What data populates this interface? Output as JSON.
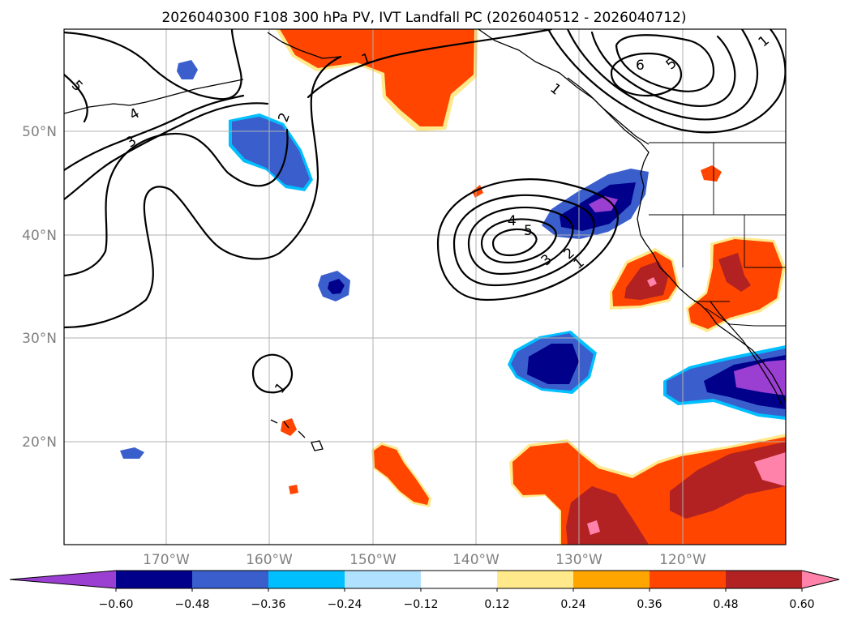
{
  "title": "2026040300 F108 300 hPa PV, IVT Landfall PC (2026040512 - 2026040712)",
  "lat_labels": [
    "50°N",
    "40°N",
    "30°N",
    "20°N"
  ],
  "lon_labels": [
    "170°W",
    "160°W",
    "150°W",
    "140°W",
    "130°W",
    "120°W"
  ],
  "colorbar": {
    "tick_labels": [
      "−0.60",
      "−0.48",
      "−0.36",
      "−0.24",
      "−0.12",
      "0.12",
      "0.24",
      "0.36",
      "0.48",
      "0.60"
    ],
    "colors": [
      "#9b3fd2",
      "#00008b",
      "#3a5fcd",
      "#00bfff",
      "#b0e2ff",
      "#ffffff",
      "#ffe98a",
      "#ffa500",
      "#ff4500",
      "#b22222",
      "#ff82ab"
    ]
  },
  "contour_labels": [
    "5",
    "4",
    "3",
    "2",
    "1",
    "1",
    "6",
    "5",
    "4",
    "5",
    "3",
    "2",
    "1",
    "1",
    "1"
  ],
  "colors": {
    "strong_negative": "#00008b",
    "negative": "#3a5fcd",
    "positive": "#ff4500",
    "strong_positive": "#b22222",
    "max_positive": "#ff82ab",
    "min_negative": "#9b3fd2"
  }
}
